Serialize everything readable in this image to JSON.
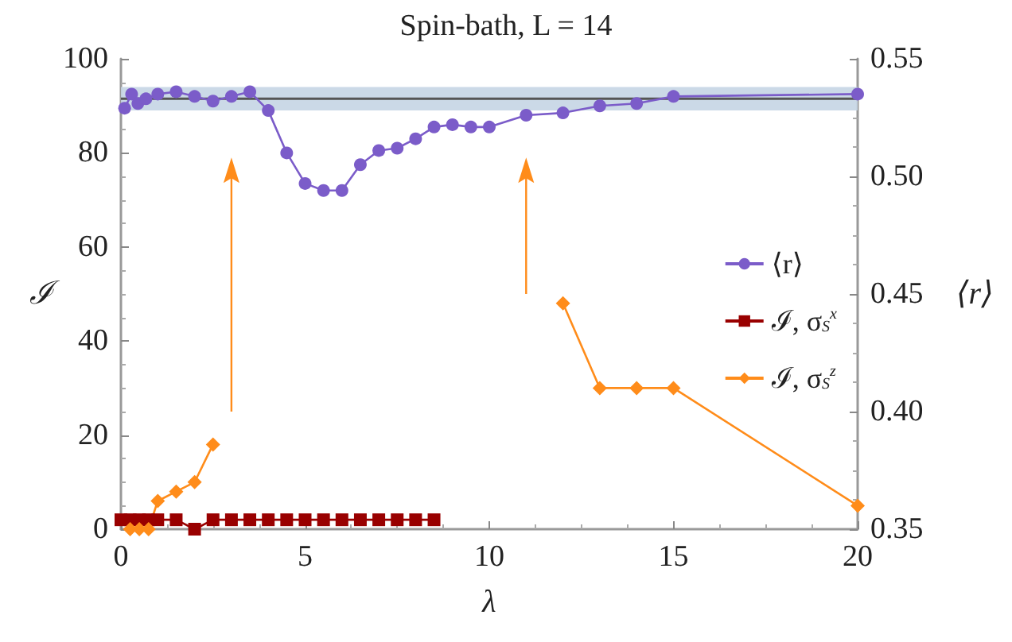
{
  "chart_data": {
    "type": "line",
    "title": "Spin-bath, L = 14",
    "xlabel": "λ",
    "ylabel": "ℐ",
    "y2label": "⟨r⟩",
    "xlim": [
      0,
      20
    ],
    "xticks": [
      0,
      5,
      10,
      15,
      20
    ],
    "ylim": [
      0,
      100
    ],
    "yticks": [
      0,
      20,
      40,
      60,
      80,
      100
    ],
    "y2lim": [
      0.35,
      0.55
    ],
    "y2ticks": [
      {
        "value": 0.35,
        "label": "0.35"
      },
      {
        "value": 0.4,
        "label": "0.40"
      },
      {
        "value": 0.45,
        "label": "0.45"
      },
      {
        "value": 0.5,
        "label": "0.50"
      },
      {
        "value": 0.55,
        "label": "0.55"
      }
    ],
    "grid": false,
    "legend": "right",
    "series": [
      {
        "name": "⟨r⟩",
        "axis": "y2",
        "marker": "circle",
        "color": "#7b5cc9",
        "x": [
          0.1,
          0.29,
          0.46,
          0.68,
          1.0,
          1.5,
          2.0,
          2.5,
          3.0,
          3.5,
          4.0,
          4.5,
          5.0,
          5.5,
          6.0,
          6.5,
          7.0,
          7.5,
          8.0,
          8.5,
          9.0,
          9.5,
          10,
          11,
          12,
          13,
          14,
          15,
          20
        ],
        "values": [
          0.529,
          0.535,
          0.531,
          0.533,
          0.535,
          0.536,
          0.534,
          0.532,
          0.534,
          0.536,
          0.528,
          0.51,
          0.497,
          0.494,
          0.494,
          0.505,
          0.511,
          0.512,
          0.516,
          0.521,
          0.522,
          0.521,
          0.521,
          0.526,
          0.527,
          0.53,
          0.531,
          0.534,
          0.535
        ]
      },
      {
        "name": "ℐ, σ$_{S}$$^{x}$",
        "marker": "square",
        "color": "#990000",
        "x": [
          0,
          0.25,
          0.5,
          0.75,
          1.0,
          1.5,
          2.0,
          2.5,
          3.0,
          3.5,
          4.0,
          4.5,
          5.0,
          5.5,
          6.0,
          6.5,
          7.0,
          7.5,
          8.0,
          8.5
        ],
        "values": [
          2,
          2,
          2,
          2,
          2,
          2,
          0,
          2,
          2,
          2,
          2,
          2,
          2,
          2,
          2,
          2,
          2,
          2,
          2,
          2
        ]
      },
      {
        "name": "ℐ, σ$_{S}$$^{z}$",
        "marker": "diamond",
        "color": "#ff8c1a",
        "x": [
          0.25,
          0.5,
          0.75,
          1.0,
          1.5,
          2.0,
          2.5,
          7,
          12,
          13,
          14,
          15,
          20
        ],
        "values": [
          0,
          0,
          0,
          6,
          8,
          10,
          18,
          null,
          48,
          30,
          30,
          30,
          5
        ]
      }
    ],
    "ref_lines": [
      {
        "axis": "y2",
        "value": 0.533,
        "color": "#555555"
      }
    ],
    "bands": [
      {
        "axis": "y2",
        "from": 0.528,
        "to": 0.538,
        "color": "#c5d5e4"
      }
    ]
  }
}
